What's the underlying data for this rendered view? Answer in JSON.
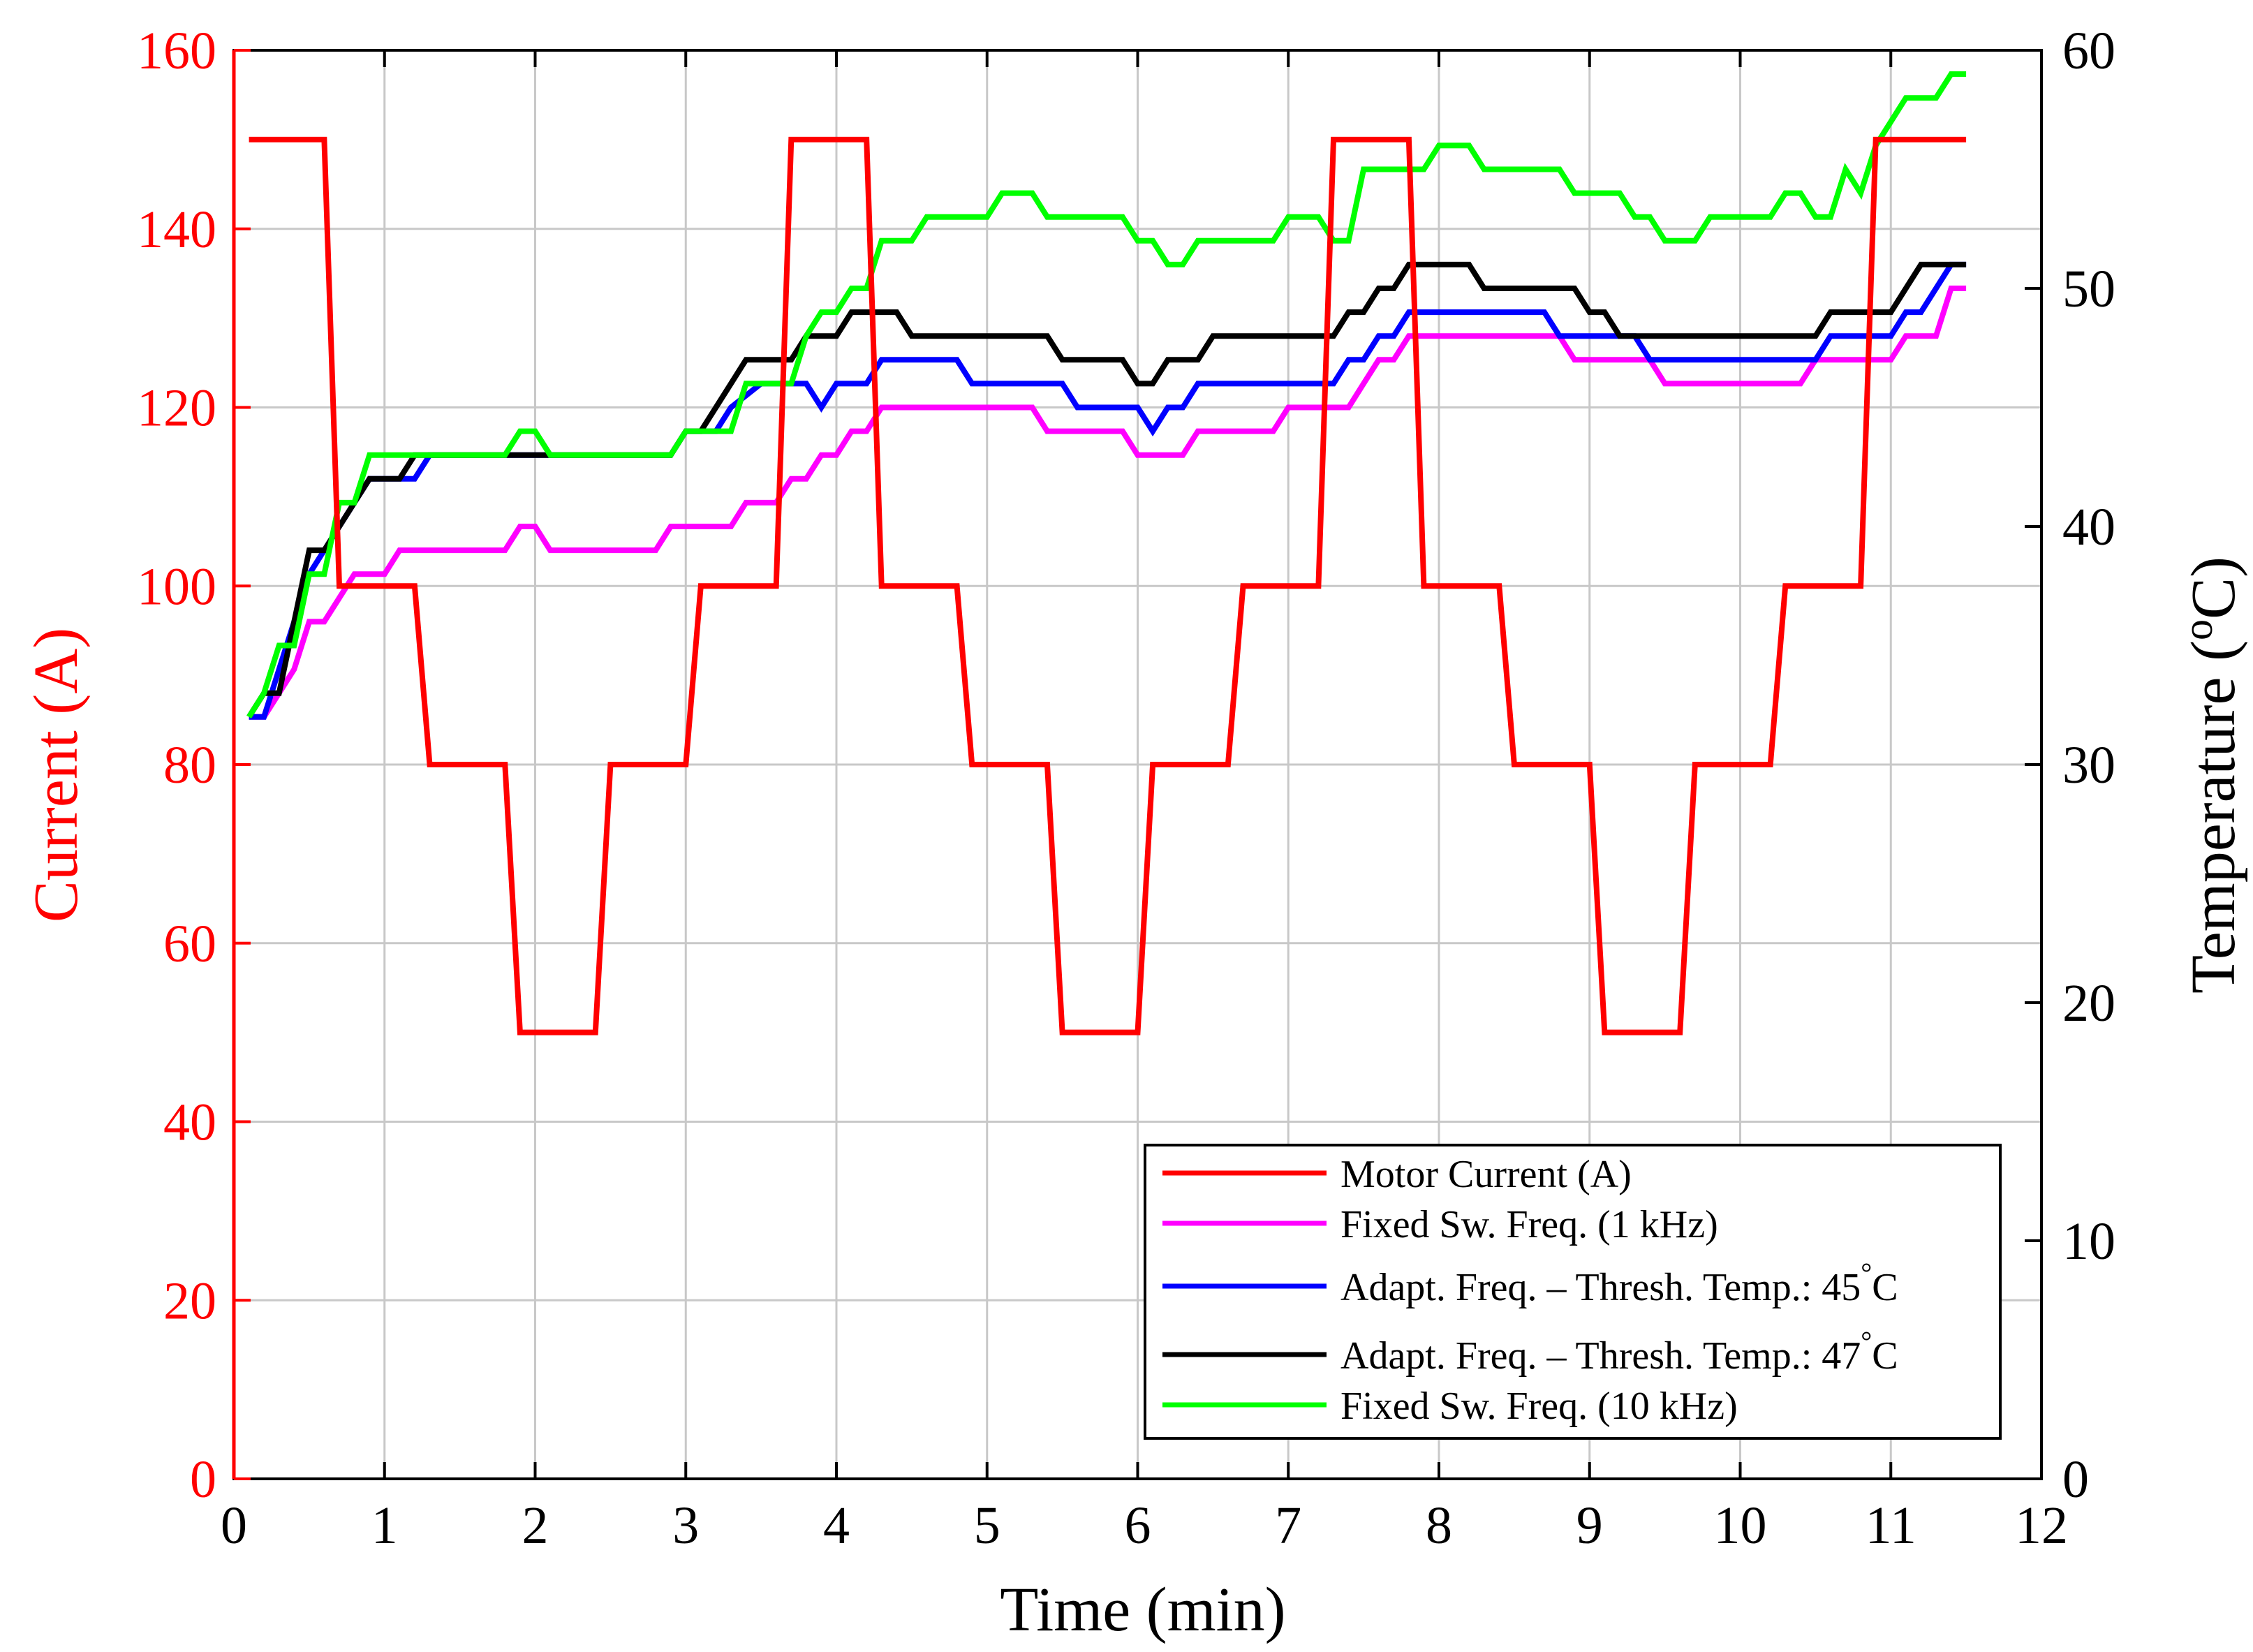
{
  "chart_data": {
    "type": "line",
    "xlabel": "Time (min)",
    "ylabel_left": "Current (A)",
    "ylabel_right_prefix": "Temperature (",
    "ylabel_right_super": "o",
    "ylabel_right_suffix": "C)",
    "xlim": [
      0,
      12
    ],
    "ylim_left": [
      0,
      160
    ],
    "ylim_right": [
      0,
      60
    ],
    "x_ticks": [
      "0",
      "1",
      "2",
      "3",
      "4",
      "5",
      "6",
      "7",
      "8",
      "9",
      "10",
      "11",
      "12"
    ],
    "y_left_ticks": [
      "0",
      "20",
      "40",
      "60",
      "80",
      "100",
      "120",
      "140",
      "160"
    ],
    "y_right_ticks": [
      "0",
      "10",
      "20",
      "30",
      "40",
      "50",
      "60"
    ],
    "grid": true,
    "legend_position": "bottom-right",
    "colors": {
      "left_axis": "#ff0000",
      "right_axis": "#000000",
      "grid": "#c8c8c8"
    },
    "series": [
      {
        "name": "Motor Current (A)",
        "axis": "left",
        "color": "#ff0000",
        "points": [
          [
            0.1,
            150
          ],
          [
            0.6,
            150
          ],
          [
            0.7,
            100
          ],
          [
            1.2,
            100
          ],
          [
            1.3,
            80
          ],
          [
            1.8,
            80
          ],
          [
            1.9,
            50
          ],
          [
            2.4,
            50
          ],
          [
            2.5,
            80
          ],
          [
            3.0,
            80
          ],
          [
            3.1,
            100
          ],
          [
            3.6,
            100
          ],
          [
            3.7,
            150
          ],
          [
            4.2,
            150
          ],
          [
            4.3,
            100
          ],
          [
            4.8,
            100
          ],
          [
            4.9,
            80
          ],
          [
            5.4,
            80
          ],
          [
            5.5,
            50
          ],
          [
            6.0,
            50
          ],
          [
            6.1,
            80
          ],
          [
            6.6,
            80
          ],
          [
            6.7,
            100
          ],
          [
            7.2,
            100
          ],
          [
            7.3,
            150
          ],
          [
            7.8,
            150
          ],
          [
            7.9,
            100
          ],
          [
            8.4,
            100
          ],
          [
            8.5,
            80
          ],
          [
            9.0,
            80
          ],
          [
            9.1,
            50
          ],
          [
            9.6,
            50
          ],
          [
            9.7,
            80
          ],
          [
            10.2,
            80
          ],
          [
            10.3,
            100
          ],
          [
            10.8,
            100
          ],
          [
            10.9,
            150
          ],
          [
            11.5,
            150
          ]
        ]
      },
      {
        "name": "Fixed Sw. Freq. (1 kHz)",
        "axis": "right",
        "color": "#ff00ff",
        "points": [
          [
            0.1,
            32
          ],
          [
            0.2,
            32
          ],
          [
            0.3,
            33
          ],
          [
            0.4,
            34
          ],
          [
            0.5,
            36
          ],
          [
            0.6,
            36
          ],
          [
            0.7,
            37
          ],
          [
            0.8,
            38
          ],
          [
            1.0,
            38
          ],
          [
            1.1,
            39
          ],
          [
            1.8,
            39
          ],
          [
            1.9,
            40
          ],
          [
            2.0,
            40
          ],
          [
            2.1,
            39
          ],
          [
            2.8,
            39
          ],
          [
            2.9,
            40
          ],
          [
            3.3,
            40
          ],
          [
            3.4,
            41
          ],
          [
            3.6,
            41
          ],
          [
            3.7,
            42
          ],
          [
            3.8,
            42
          ],
          [
            3.9,
            43
          ],
          [
            4.0,
            43
          ],
          [
            4.1,
            44
          ],
          [
            4.2,
            44
          ],
          [
            4.3,
            45
          ],
          [
            5.3,
            45
          ],
          [
            5.4,
            44
          ],
          [
            5.9,
            44
          ],
          [
            6.0,
            43
          ],
          [
            6.3,
            43
          ],
          [
            6.4,
            44
          ],
          [
            6.9,
            44
          ],
          [
            7.0,
            45
          ],
          [
            7.4,
            45
          ],
          [
            7.5,
            46
          ],
          [
            7.6,
            47
          ],
          [
            7.7,
            47
          ],
          [
            7.8,
            48
          ],
          [
            8.8,
            48
          ],
          [
            8.9,
            47
          ],
          [
            9.4,
            47
          ],
          [
            9.5,
            46
          ],
          [
            10.4,
            46
          ],
          [
            10.5,
            47
          ],
          [
            11.0,
            47
          ],
          [
            11.1,
            48
          ],
          [
            11.3,
            48
          ],
          [
            11.4,
            50
          ],
          [
            11.5,
            50
          ]
        ]
      },
      {
        "name": "Adapt. Freq. – Thresh. Temp.: 45°C",
        "label_main": "Adapt. Freq. – Thresh. Temp.: 45",
        "label_super": "°",
        "label_suffix": "C",
        "axis": "right",
        "color": "#0000ff",
        "points": [
          [
            0.1,
            32
          ],
          [
            0.2,
            32
          ],
          [
            0.3,
            34
          ],
          [
            0.4,
            36
          ],
          [
            0.5,
            38
          ],
          [
            0.6,
            39
          ],
          [
            0.7,
            40
          ],
          [
            0.8,
            41
          ],
          [
            0.9,
            42
          ],
          [
            1.2,
            42
          ],
          [
            1.3,
            43
          ],
          [
            2.9,
            43
          ],
          [
            3.0,
            44
          ],
          [
            3.2,
            44
          ],
          [
            3.3,
            45
          ],
          [
            3.5,
            46
          ],
          [
            3.8,
            46
          ],
          [
            3.9,
            45
          ],
          [
            4.0,
            46
          ],
          [
            4.2,
            46
          ],
          [
            4.3,
            47
          ],
          [
            4.8,
            47
          ],
          [
            4.9,
            46
          ],
          [
            5.5,
            46
          ],
          [
            5.6,
            45
          ],
          [
            6.0,
            45
          ],
          [
            6.1,
            44
          ],
          [
            6.2,
            45
          ],
          [
            6.3,
            45
          ],
          [
            6.4,
            46
          ],
          [
            7.3,
            46
          ],
          [
            7.4,
            47
          ],
          [
            7.5,
            47
          ],
          [
            7.6,
            48
          ],
          [
            7.7,
            48
          ],
          [
            7.8,
            49
          ],
          [
            8.7,
            49
          ],
          [
            8.8,
            48
          ],
          [
            9.3,
            48
          ],
          [
            9.4,
            47
          ],
          [
            10.5,
            47
          ],
          [
            10.6,
            48
          ],
          [
            11.0,
            48
          ],
          [
            11.1,
            49
          ],
          [
            11.2,
            49
          ],
          [
            11.3,
            50
          ],
          [
            11.4,
            51
          ],
          [
            11.5,
            51
          ]
        ]
      },
      {
        "name": "Adapt. Freq. – Thresh. Temp.: 47°C",
        "label_main": "Adapt. Freq. – Thresh. Temp.: 47",
        "label_super": "°",
        "label_suffix": "C",
        "axis": "right",
        "color": "#000000",
        "points": [
          [
            0.1,
            32
          ],
          [
            0.2,
            33
          ],
          [
            0.3,
            33
          ],
          [
            0.4,
            36
          ],
          [
            0.5,
            39
          ],
          [
            0.6,
            39
          ],
          [
            0.7,
            40
          ],
          [
            0.8,
            41
          ],
          [
            0.9,
            42
          ],
          [
            1.1,
            42
          ],
          [
            1.2,
            43
          ],
          [
            1.8,
            43
          ],
          [
            2.9,
            43
          ],
          [
            3.0,
            44
          ],
          [
            3.1,
            44
          ],
          [
            3.2,
            45
          ],
          [
            3.3,
            46
          ],
          [
            3.4,
            47
          ],
          [
            3.7,
            47
          ],
          [
            3.8,
            48
          ],
          [
            4.0,
            48
          ],
          [
            4.1,
            49
          ],
          [
            4.4,
            49
          ],
          [
            4.5,
            48
          ],
          [
            5.4,
            48
          ],
          [
            5.5,
            47
          ],
          [
            5.9,
            47
          ],
          [
            6.0,
            46
          ],
          [
            6.1,
            46
          ],
          [
            6.2,
            47
          ],
          [
            6.4,
            47
          ],
          [
            6.5,
            48
          ],
          [
            7.3,
            48
          ],
          [
            7.4,
            49
          ],
          [
            7.5,
            49
          ],
          [
            7.6,
            50
          ],
          [
            7.7,
            50
          ],
          [
            7.8,
            51
          ],
          [
            8.2,
            51
          ],
          [
            8.3,
            50
          ],
          [
            8.9,
            50
          ],
          [
            9.0,
            49
          ],
          [
            9.1,
            49
          ],
          [
            9.2,
            48
          ],
          [
            10.5,
            48
          ],
          [
            10.6,
            49
          ],
          [
            11.0,
            49
          ],
          [
            11.1,
            50
          ],
          [
            11.2,
            51
          ],
          [
            11.5,
            51
          ]
        ]
      },
      {
        "name": "Fixed Sw. Freq. (10 kHz)",
        "axis": "right",
        "color": "#00ff00",
        "points": [
          [
            0.1,
            32
          ],
          [
            0.2,
            33
          ],
          [
            0.3,
            35
          ],
          [
            0.4,
            35
          ],
          [
            0.5,
            38
          ],
          [
            0.6,
            38
          ],
          [
            0.7,
            41
          ],
          [
            0.8,
            41
          ],
          [
            0.9,
            43
          ],
          [
            1.8,
            43
          ],
          [
            1.9,
            44
          ],
          [
            2.0,
            44
          ],
          [
            2.1,
            43
          ],
          [
            2.9,
            43
          ],
          [
            3.0,
            44
          ],
          [
            3.3,
            44
          ],
          [
            3.4,
            46
          ],
          [
            3.7,
            46
          ],
          [
            3.8,
            48
          ],
          [
            3.9,
            49
          ],
          [
            4.0,
            49
          ],
          [
            4.1,
            50
          ],
          [
            4.2,
            50
          ],
          [
            4.3,
            52
          ],
          [
            4.5,
            52
          ],
          [
            4.6,
            53
          ],
          [
            5.0,
            53
          ],
          [
            5.1,
            54
          ],
          [
            5.3,
            54
          ],
          [
            5.4,
            53
          ],
          [
            5.9,
            53
          ],
          [
            6.0,
            52
          ],
          [
            6.1,
            52
          ],
          [
            6.2,
            51
          ],
          [
            6.3,
            51
          ],
          [
            6.4,
            52
          ],
          [
            6.9,
            52
          ],
          [
            7.0,
            53
          ],
          [
            7.2,
            53
          ],
          [
            7.3,
            52
          ],
          [
            7.4,
            52
          ],
          [
            7.5,
            55
          ],
          [
            7.9,
            55
          ],
          [
            8.0,
            56
          ],
          [
            8.2,
            56
          ],
          [
            8.3,
            55
          ],
          [
            8.8,
            55
          ],
          [
            8.9,
            54
          ],
          [
            9.2,
            54
          ],
          [
            9.3,
            53
          ],
          [
            9.4,
            53
          ],
          [
            9.5,
            52
          ],
          [
            9.7,
            52
          ],
          [
            9.8,
            53
          ],
          [
            10.2,
            53
          ],
          [
            10.3,
            54
          ],
          [
            10.4,
            54
          ],
          [
            10.5,
            53
          ],
          [
            10.6,
            53
          ],
          [
            10.7,
            55
          ],
          [
            10.8,
            54
          ],
          [
            10.9,
            56
          ],
          [
            11.0,
            57
          ],
          [
            11.1,
            58
          ],
          [
            11.3,
            58
          ],
          [
            11.4,
            59
          ],
          [
            11.5,
            59
          ]
        ]
      }
    ]
  }
}
